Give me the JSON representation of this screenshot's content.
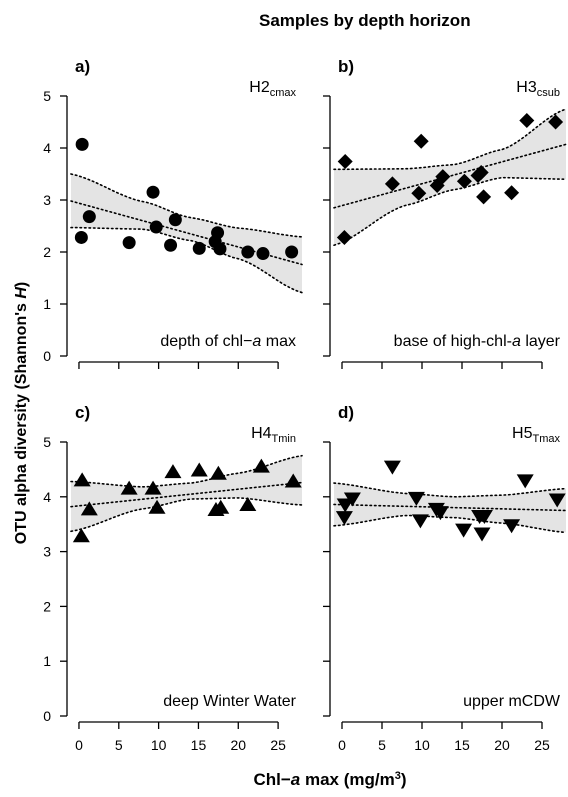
{
  "title": "Samples by depth horizon",
  "ylabel": "OTU alpha diversity (Shannon's ",
  "ylabel_italic": "H",
  "ylabel_close": ")",
  "xlabel": "Chl−",
  "xlabel_italic": "a",
  "xlabel_rest": " max (mg/m",
  "xlabel_sup": "3",
  "xlabel_close": ")",
  "colors": {
    "points": "#000000",
    "band": "#e4e4e4",
    "lines": "#000000"
  },
  "chart_data": [
    {
      "type": "scatter",
      "panel": "a)",
      "horizon": "H2",
      "horizon_sub": "cmax",
      "desc_parts": [
        "depth of chl−",
        "a",
        " max"
      ],
      "marker": "circle",
      "xlim": [
        -1,
        28
      ],
      "ylim": [
        0,
        5
      ],
      "xticks": [
        0,
        5,
        10,
        15,
        20,
        25
      ],
      "yticks": [
        0,
        1,
        2,
        3,
        4,
        5
      ],
      "points": [
        [
          0.4,
          4.07
        ],
        [
          0.3,
          2.28
        ],
        [
          1.3,
          2.68
        ],
        [
          6.3,
          2.18
        ],
        [
          9.3,
          3.15
        ],
        [
          9.7,
          2.48
        ],
        [
          11.5,
          2.13
        ],
        [
          12.1,
          2.62
        ],
        [
          15.1,
          2.07
        ],
        [
          17.1,
          2.2
        ],
        [
          17.4,
          2.37
        ],
        [
          17.7,
          2.06
        ],
        [
          21.2,
          2.0
        ],
        [
          23.1,
          1.97
        ],
        [
          26.7,
          2.0
        ]
      ],
      "fit": [
        [
          -1,
          2.98
        ],
        [
          28,
          1.76
        ]
      ],
      "ci_upper": [
        [
          -1,
          3.5
        ],
        [
          8,
          2.97
        ],
        [
          14,
          2.66
        ],
        [
          20,
          2.46
        ],
        [
          28,
          2.29
        ]
      ],
      "ci_lower": [
        [
          -1,
          2.47
        ],
        [
          8,
          2.44
        ],
        [
          14,
          2.22
        ],
        [
          20,
          1.87
        ],
        [
          28,
          1.22
        ]
      ]
    },
    {
      "type": "scatter",
      "panel": "b)",
      "horizon": "H3",
      "horizon_sub": "csub",
      "desc_parts": [
        "base of high-chl-",
        "a",
        " layer"
      ],
      "marker": "diamond",
      "xlim": [
        -1,
        28
      ],
      "ylim": [
        0,
        5
      ],
      "xticks": [
        0,
        5,
        10,
        15,
        20,
        25
      ],
      "yticks": [
        0,
        1,
        2,
        3,
        4,
        5
      ],
      "points": [
        [
          0.4,
          3.74
        ],
        [
          0.3,
          2.28
        ],
        [
          6.3,
          3.31
        ],
        [
          9.6,
          3.13
        ],
        [
          9.9,
          4.13
        ],
        [
          11.9,
          3.28
        ],
        [
          12.6,
          3.45
        ],
        [
          15.3,
          3.36
        ],
        [
          17.0,
          3.47
        ],
        [
          17.4,
          3.53
        ],
        [
          17.7,
          3.06
        ],
        [
          21.2,
          3.14
        ],
        [
          23.1,
          4.53
        ],
        [
          26.7,
          4.5
        ]
      ],
      "fit": [
        [
          -1,
          2.85
        ],
        [
          28,
          4.07
        ]
      ],
      "ci_upper": [
        [
          -1,
          3.59
        ],
        [
          8,
          3.6
        ],
        [
          14,
          3.68
        ],
        [
          20,
          3.97
        ],
        [
          28,
          4.75
        ]
      ],
      "ci_lower": [
        [
          -1,
          2.13
        ],
        [
          8,
          2.9
        ],
        [
          14,
          3.2
        ],
        [
          20,
          3.43
        ],
        [
          28,
          3.4
        ]
      ]
    },
    {
      "type": "scatter",
      "panel": "c)",
      "horizon": "H4",
      "horizon_sub": "Tmin",
      "desc_parts": [
        "deep Winter Water"
      ],
      "marker": "triangle-up",
      "xlim": [
        -1,
        28
      ],
      "ylim": [
        0,
        5
      ],
      "xticks": [
        0,
        5,
        10,
        15,
        20,
        25
      ],
      "yticks": [
        0,
        1,
        2,
        3,
        4,
        5
      ],
      "points": [
        [
          0.4,
          4.3
        ],
        [
          0.3,
          3.28
        ],
        [
          1.3,
          3.77
        ],
        [
          6.3,
          4.15
        ],
        [
          9.3,
          4.15
        ],
        [
          9.8,
          3.8
        ],
        [
          11.8,
          4.45
        ],
        [
          15.1,
          4.48
        ],
        [
          17.2,
          3.76
        ],
        [
          17.5,
          4.42
        ],
        [
          17.8,
          3.8
        ],
        [
          21.2,
          3.85
        ],
        [
          22.9,
          4.55
        ],
        [
          26.9,
          4.28
        ]
      ],
      "fit": [
        [
          -1,
          3.82
        ],
        [
          28,
          4.26
        ]
      ],
      "ci_upper": [
        [
          -1,
          4.28
        ],
        [
          8,
          4.18
        ],
        [
          14,
          4.25
        ],
        [
          20,
          4.43
        ],
        [
          28,
          4.75
        ]
      ],
      "ci_lower": [
        [
          -1,
          3.37
        ],
        [
          8,
          3.78
        ],
        [
          14,
          3.96
        ],
        [
          20,
          3.98
        ],
        [
          28,
          3.85
        ]
      ]
    },
    {
      "type": "scatter",
      "panel": "d)",
      "horizon": "H5",
      "horizon_sub": "Tmax",
      "desc_parts": [
        "upper mCDW"
      ],
      "marker": "triangle-down",
      "xlim": [
        -1,
        28
      ],
      "ylim": [
        0,
        5
      ],
      "xticks": [
        0,
        5,
        10,
        15,
        20,
        25
      ],
      "yticks": [
        0,
        1,
        2,
        3,
        4,
        5
      ],
      "points": [
        [
          0.4,
          3.86
        ],
        [
          0.3,
          3.63
        ],
        [
          1.3,
          3.97
        ],
        [
          6.3,
          4.55
        ],
        [
          9.3,
          3.98
        ],
        [
          9.8,
          3.57
        ],
        [
          11.8,
          3.78
        ],
        [
          12.3,
          3.72
        ],
        [
          15.2,
          3.4
        ],
        [
          17.2,
          3.65
        ],
        [
          17.5,
          3.33
        ],
        [
          17.8,
          3.65
        ],
        [
          21.2,
          3.48
        ],
        [
          22.9,
          4.3
        ],
        [
          26.9,
          3.95
        ]
      ],
      "fit": [
        [
          -1,
          3.86
        ],
        [
          28,
          3.75
        ]
      ],
      "ci_upper": [
        [
          -1,
          4.25
        ],
        [
          8,
          4.06
        ],
        [
          14,
          4.0
        ],
        [
          20,
          4.03
        ],
        [
          28,
          4.15
        ]
      ],
      "ci_lower": [
        [
          -1,
          3.47
        ],
        [
          8,
          3.66
        ],
        [
          14,
          3.62
        ],
        [
          20,
          3.52
        ],
        [
          28,
          3.35
        ]
      ]
    }
  ]
}
